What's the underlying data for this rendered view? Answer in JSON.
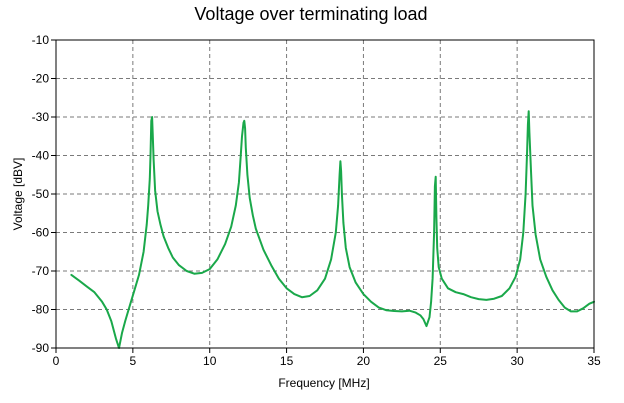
{
  "chart_data": {
    "type": "line",
    "title": "Voltage over terminating load",
    "xlabel": "Frequency [MHz]",
    "ylabel": "Voltage [dBV]",
    "xlim": [
      0,
      35
    ],
    "ylim": [
      -90,
      -10
    ],
    "xticks": [
      0,
      5,
      10,
      15,
      20,
      25,
      30,
      35
    ],
    "yticks": [
      -10,
      -20,
      -30,
      -40,
      -50,
      -60,
      -70,
      -80,
      -90
    ],
    "grid": true,
    "series": [
      {
        "color": "#1aa84a",
        "x": [
          1.0,
          1.5,
          2.0,
          2.5,
          3.0,
          3.3,
          3.6,
          3.9,
          4.1,
          4.3,
          4.5,
          4.8,
          5.1,
          5.4,
          5.7,
          5.9,
          6.0,
          6.1,
          6.15,
          6.2,
          6.25,
          6.3,
          6.35,
          6.45,
          6.6,
          6.8,
          7.0,
          7.3,
          7.6,
          8.0,
          8.5,
          9.0,
          9.5,
          10.0,
          10.5,
          11.0,
          11.4,
          11.7,
          11.9,
          12.0,
          12.1,
          12.2,
          12.25,
          12.3,
          12.35,
          12.45,
          12.6,
          12.8,
          13.0,
          13.5,
          14.0,
          14.5,
          15.0,
          15.5,
          16.0,
          16.5,
          17.0,
          17.5,
          17.9,
          18.2,
          18.35,
          18.45,
          18.5,
          18.55,
          18.6,
          18.7,
          18.85,
          19.1,
          19.5,
          20.0,
          20.5,
          21.0,
          21.5,
          22.0,
          22.5,
          23.0,
          23.4,
          23.7,
          23.9,
          24.1,
          24.3,
          24.4,
          24.5,
          24.6,
          24.65,
          24.7,
          24.75,
          24.8,
          24.9,
          25.1,
          25.5,
          26.0,
          26.5,
          27.0,
          27.5,
          28.0,
          28.5,
          29.0,
          29.5,
          29.9,
          30.2,
          30.4,
          30.55,
          30.65,
          30.7,
          30.75,
          30.8,
          30.9,
          31.0,
          31.2,
          31.5,
          31.9,
          32.3,
          32.7,
          33.1,
          33.5,
          33.9,
          34.3,
          34.7,
          35.0
        ],
        "y": [
          -71,
          -72.5,
          -74,
          -75.5,
          -78,
          -80,
          -83,
          -87.5,
          -90,
          -86,
          -83,
          -79,
          -75,
          -71,
          -65,
          -58,
          -53,
          -46,
          -40,
          -31,
          -30,
          -35,
          -41,
          -49,
          -54.5,
          -58,
          -61,
          -64,
          -66.5,
          -68.5,
          -70,
          -70.7,
          -70.5,
          -69.5,
          -67,
          -63,
          -58.5,
          -53,
          -47,
          -41,
          -35,
          -31.5,
          -31,
          -33,
          -38,
          -45,
          -51,
          -55.5,
          -59,
          -64.5,
          -68.5,
          -72,
          -74.5,
          -76,
          -76.8,
          -76.5,
          -75,
          -72,
          -67,
          -60,
          -53,
          -45,
          -41.5,
          -44,
          -50,
          -57.5,
          -64,
          -69,
          -73,
          -76,
          -78,
          -79.5,
          -80.2,
          -80.4,
          -80.5,
          -80.3,
          -80.8,
          -81.5,
          -82.5,
          -84.3,
          -82,
          -78,
          -72,
          -60,
          -48,
          -45.5,
          -56,
          -64,
          -69,
          -72,
          -74.5,
          -75.5,
          -76,
          -76.8,
          -77.3,
          -77.5,
          -77.2,
          -76.5,
          -74.5,
          -71.5,
          -67,
          -60,
          -50,
          -39,
          -32,
          -28.5,
          -34,
          -44,
          -53,
          -60.5,
          -67,
          -71.5,
          -75,
          -77.5,
          -79.5,
          -80.5,
          -80.5,
          -79.7,
          -78.5,
          -78
        ]
      }
    ]
  }
}
